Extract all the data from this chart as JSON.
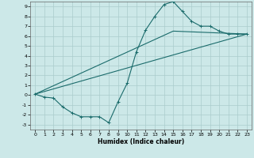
{
  "title": "",
  "xlabel": "Humidex (Indice chaleur)",
  "bg_color": "#cce8e8",
  "grid_color": "#aacccc",
  "line_color": "#1a6b6b",
  "xlim": [
    -0.5,
    23.5
  ],
  "ylim": [
    -3.5,
    9.5
  ],
  "xticks": [
    0,
    1,
    2,
    3,
    4,
    5,
    6,
    7,
    8,
    9,
    10,
    11,
    12,
    13,
    14,
    15,
    16,
    17,
    18,
    19,
    20,
    21,
    22,
    23
  ],
  "yticks": [
    -3,
    -2,
    -1,
    0,
    1,
    2,
    3,
    4,
    5,
    6,
    7,
    8,
    9
  ],
  "curve1_x": [
    0,
    1,
    2,
    3,
    4,
    5,
    6,
    7,
    8,
    9,
    10,
    11,
    12,
    13,
    14,
    15,
    16,
    17,
    18,
    19,
    20,
    21,
    22,
    23
  ],
  "curve1_y": [
    0.1,
    -0.2,
    -0.3,
    -1.2,
    -1.8,
    -2.2,
    -2.2,
    -2.2,
    -2.8,
    -0.7,
    1.2,
    4.4,
    6.6,
    8.0,
    9.2,
    9.5,
    8.5,
    7.5,
    7.0,
    7.0,
    6.5,
    6.2,
    6.2,
    6.2
  ],
  "curve2_x": [
    0,
    15,
    23
  ],
  "curve2_y": [
    0.1,
    6.5,
    6.2
  ],
  "curve3_x": [
    0,
    23
  ],
  "curve3_y": [
    0.1,
    6.2
  ]
}
